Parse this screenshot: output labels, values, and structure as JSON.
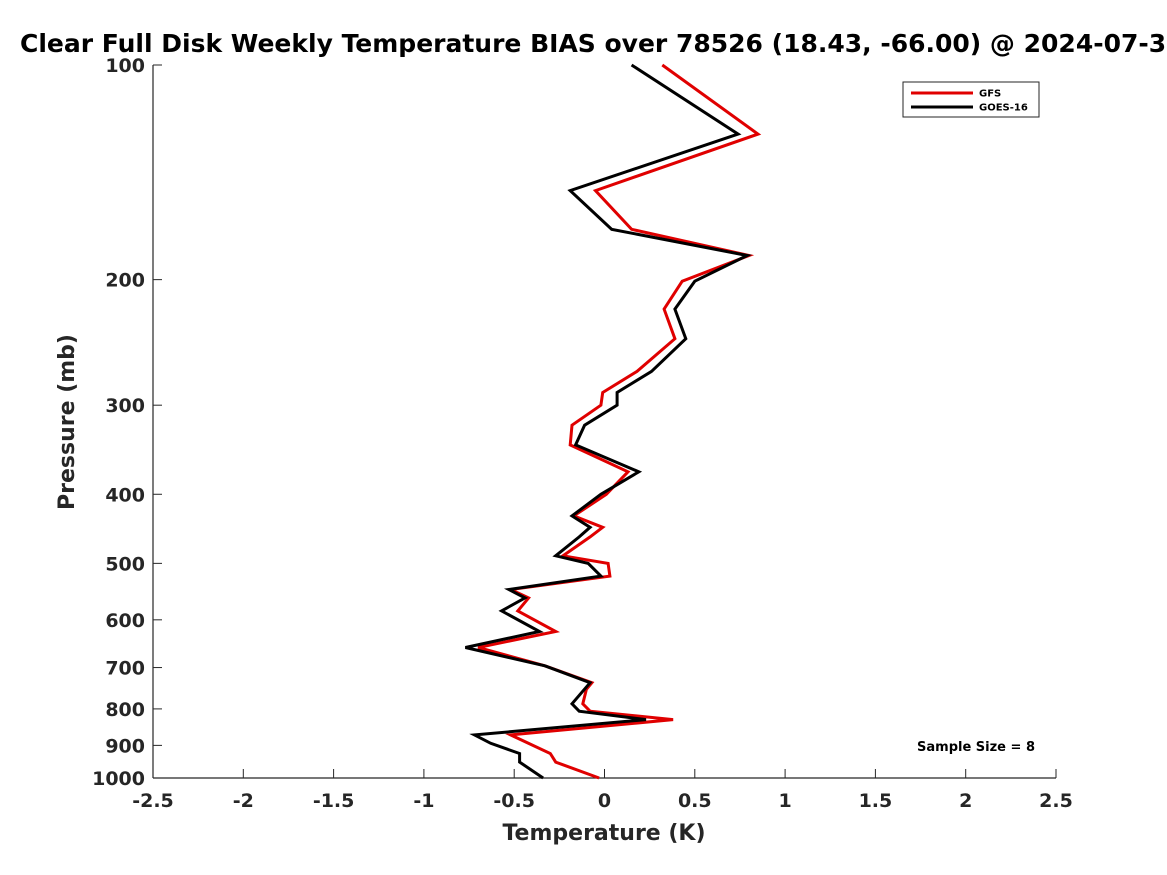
{
  "chart_data": {
    "type": "line",
    "title": "Clear Full Disk Weekly Temperature BIAS over 78526 (18.43, -66.00) @ 2024-07-3",
    "xlabel": "Temperature (K)",
    "ylabel": "Pressure (mb)",
    "xlim": [
      -2.5,
      2.5
    ],
    "ylim": [
      1000,
      100
    ],
    "y_scale": "log",
    "y_reversed": true,
    "x_ticks": [
      "-2.5",
      "-2",
      "-1.5",
      "-1",
      "-0.5",
      "0",
      "0.5",
      "1",
      "1.5",
      "2",
      "2.5"
    ],
    "y_ticks": [
      "100",
      "200",
      "300",
      "400",
      "500",
      "600",
      "700",
      "800",
      "900",
      "1000"
    ],
    "grid": false,
    "legend_position": "top-right",
    "annotation": "Sample Size = 8",
    "series": [
      {
        "name": "GFS",
        "color": "#e00000",
        "points": [
          [
            0.32,
            100
          ],
          [
            0.85,
            125
          ],
          [
            -0.05,
            150
          ],
          [
            0.15,
            170
          ],
          [
            0.8,
            185
          ],
          [
            0.43,
            201
          ],
          [
            0.33,
            220
          ],
          [
            0.39,
            242
          ],
          [
            0.18,
            269
          ],
          [
            -0.01,
            288
          ],
          [
            -0.02,
            300
          ],
          [
            -0.18,
            320
          ],
          [
            -0.19,
            341
          ],
          [
            0.13,
            372
          ],
          [
            0.01,
            400
          ],
          [
            -0.17,
            429
          ],
          [
            -0.01,
            445
          ],
          [
            -0.08,
            459
          ],
          [
            -0.23,
            488
          ],
          [
            0.02,
            500
          ],
          [
            0.03,
            521
          ],
          [
            -0.52,
            544
          ],
          [
            -0.42,
            559
          ],
          [
            -0.48,
            583
          ],
          [
            -0.27,
            623
          ],
          [
            -0.7,
            656
          ],
          [
            -0.33,
            696
          ],
          [
            -0.07,
            735
          ],
          [
            -0.1,
            751
          ],
          [
            -0.12,
            787
          ],
          [
            -0.08,
            806
          ],
          [
            0.38,
            828
          ],
          [
            -0.52,
            870
          ],
          [
            -0.3,
            924
          ],
          [
            -0.27,
            950
          ],
          [
            -0.03,
            1000
          ]
        ]
      },
      {
        "name": "GOES-16",
        "color": "#000000",
        "points": [
          [
            0.15,
            100
          ],
          [
            0.74,
            125
          ],
          [
            -0.19,
            150
          ],
          [
            0.04,
            170
          ],
          [
            0.79,
            185
          ],
          [
            0.5,
            201
          ],
          [
            0.39,
            220
          ],
          [
            0.45,
            242
          ],
          [
            0.26,
            269
          ],
          [
            0.07,
            288
          ],
          [
            0.07,
            300
          ],
          [
            -0.11,
            320
          ],
          [
            -0.16,
            341
          ],
          [
            0.19,
            372
          ],
          [
            -0.02,
            400
          ],
          [
            -0.18,
            429
          ],
          [
            -0.08,
            445
          ],
          [
            -0.14,
            459
          ],
          [
            -0.27,
            488
          ],
          [
            -0.09,
            500
          ],
          [
            -0.02,
            521
          ],
          [
            -0.53,
            544
          ],
          [
            -0.44,
            559
          ],
          [
            -0.57,
            583
          ],
          [
            -0.36,
            623
          ],
          [
            -0.77,
            656
          ],
          [
            -0.33,
            696
          ],
          [
            -0.08,
            735
          ],
          [
            -0.18,
            787
          ],
          [
            -0.14,
            806
          ],
          [
            0.23,
            828
          ],
          [
            -0.72,
            870
          ],
          [
            -0.63,
            894
          ],
          [
            -0.47,
            924
          ],
          [
            -0.47,
            950
          ],
          [
            -0.34,
            1000
          ]
        ]
      }
    ]
  }
}
